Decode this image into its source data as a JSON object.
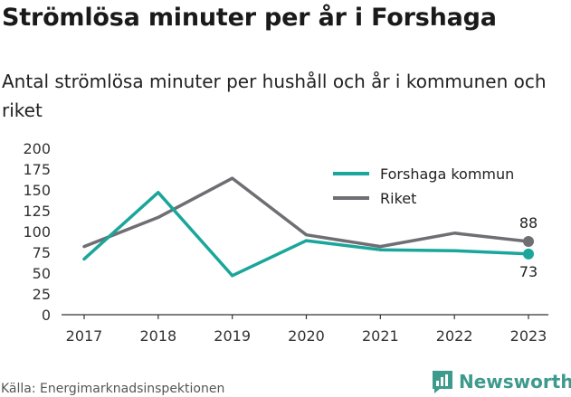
{
  "header": {
    "title": "Strömlösa minuter per år i Forshaga",
    "subtitle": "Antal strömlösa minuter per hushåll och år i kommunen och riket"
  },
  "footer": {
    "source": "Källa: Energimarknadsinspektionen",
    "brand": "Newsworthy"
  },
  "colors": {
    "forshaga": "#1aa69a",
    "riket": "#6e6e73"
  },
  "chart_data": {
    "type": "line",
    "title": "Strömlösa minuter per år i Forshaga",
    "subtitle": "Antal strömlösa minuter per hushåll och år i kommunen och riket",
    "x": [
      "2017",
      "2018",
      "2019",
      "2020",
      "2021",
      "2022",
      "2023"
    ],
    "ylim": [
      0,
      200
    ],
    "yticks": [
      "0",
      "25",
      "50",
      "75",
      "100",
      "125",
      "150",
      "175",
      "200"
    ],
    "grid": false,
    "legend_position": "top-right",
    "series": [
      {
        "name": "Forshaga kommun",
        "values": [
          67,
          147,
          47,
          89,
          78,
          77,
          73
        ],
        "end_label": "73"
      },
      {
        "name": "Riket",
        "values": [
          82,
          117,
          164,
          96,
          82,
          98,
          88
        ],
        "end_label": "88"
      }
    ]
  }
}
